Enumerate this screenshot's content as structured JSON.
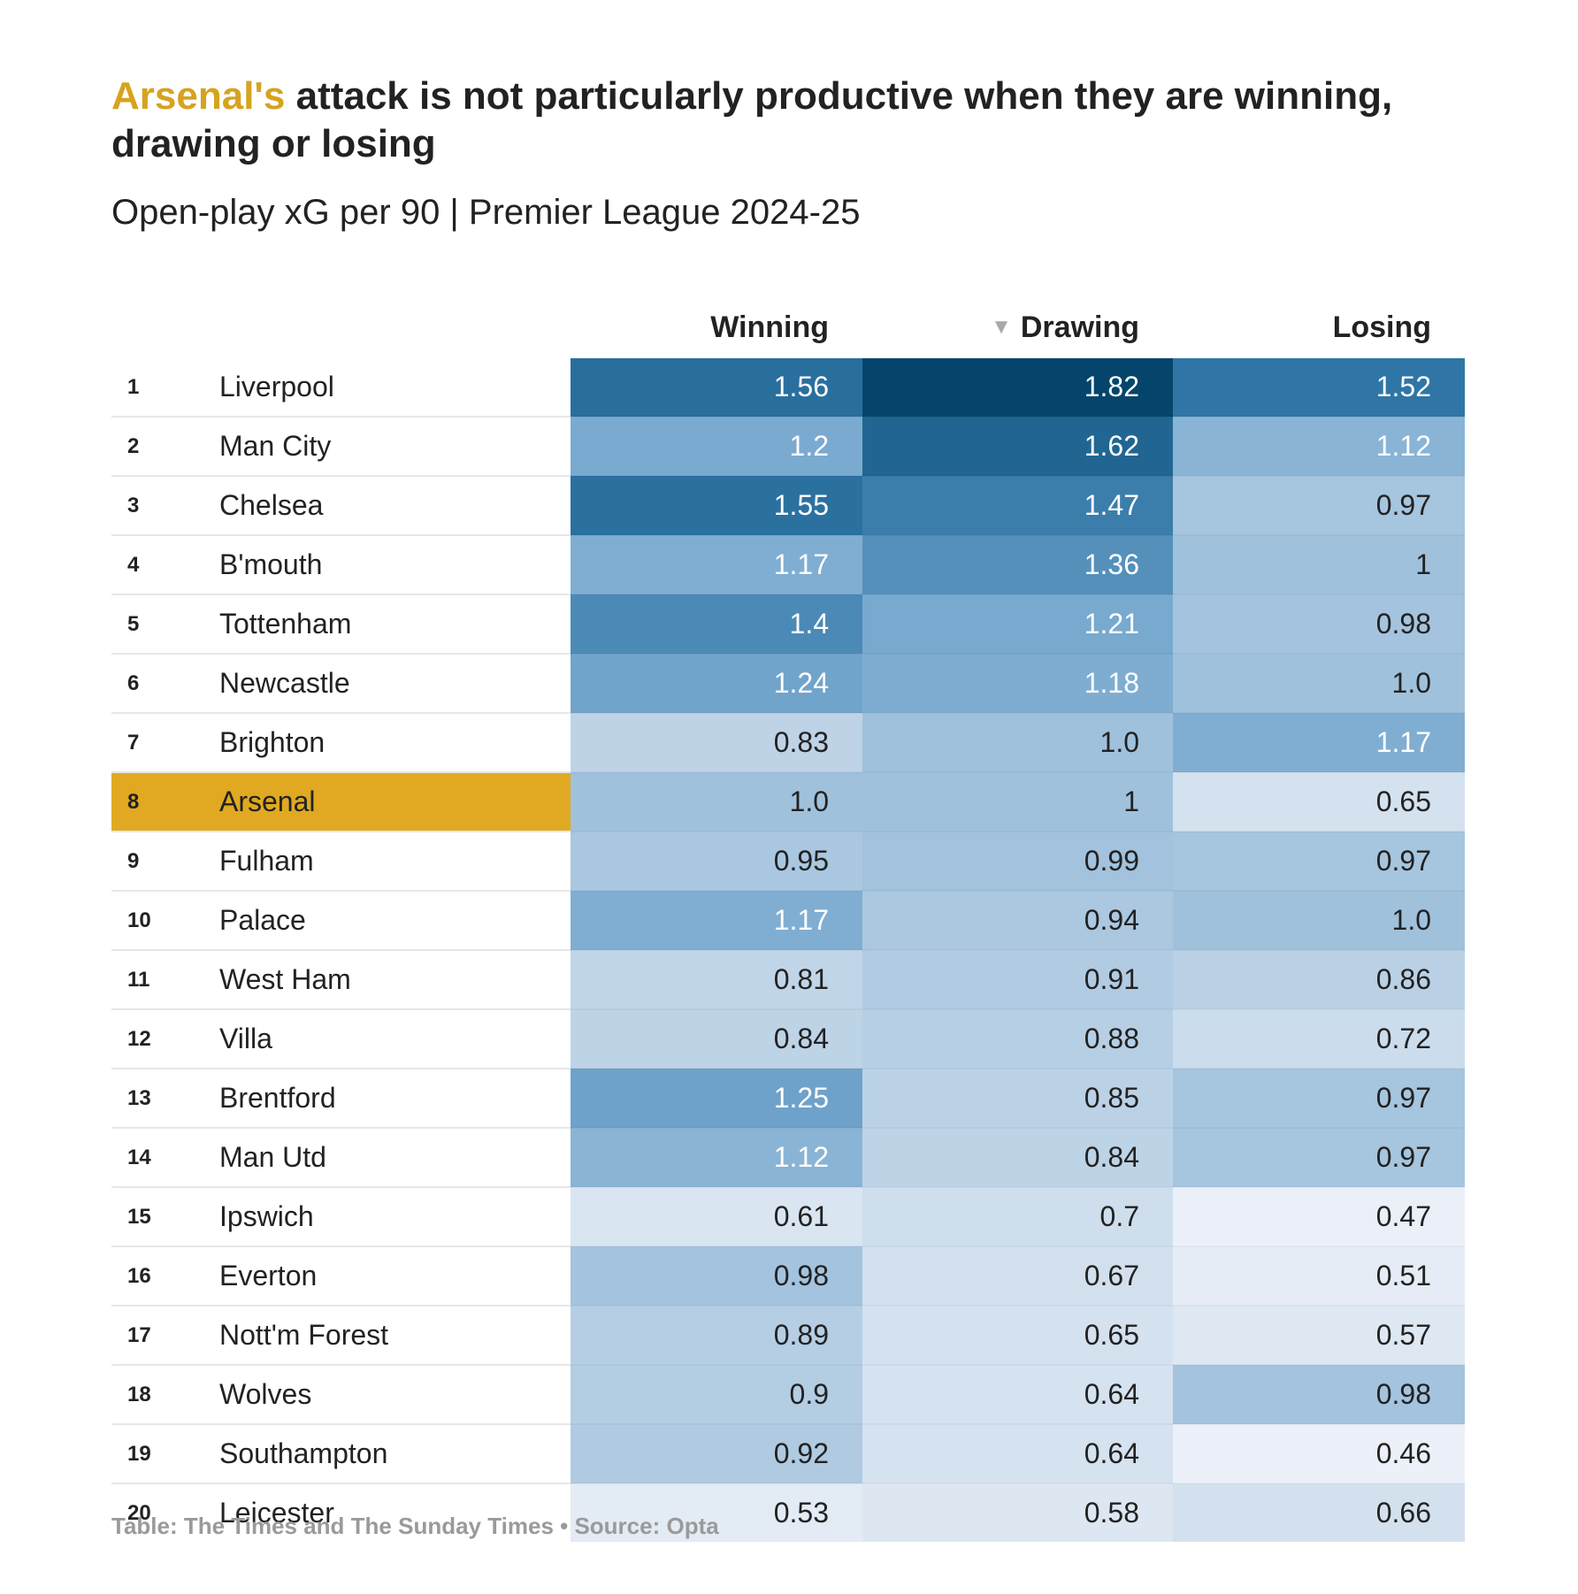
{
  "title": {
    "highlight": "Arsenal's",
    "rest": "attack is not particularly productive when they are winning, drawing or losing"
  },
  "subtitle": "Open-play xG per 90 | Premier League 2024-25",
  "footer": "Table: The Times and The Sunday Times • Source: Opta",
  "sort_icon": "triangle-down-icon",
  "highlight_team": "Arsenal",
  "colors": {
    "highlight": "#e0a921",
    "scale_low": "#edf1f8",
    "scale_high": "#05456b"
  },
  "chart_data": {
    "type": "table",
    "columns": [
      "",
      "",
      "Winning",
      "Drawing",
      "Losing"
    ],
    "sorted_by": "Drawing",
    "sort_order": "descending",
    "rows": [
      {
        "rank": "1",
        "team": "Liverpool",
        "values": [
          "1.56",
          "1.82",
          "1.52"
        ]
      },
      {
        "rank": "2",
        "team": "Man City",
        "values": [
          "1.2",
          "1.62",
          "1.12"
        ]
      },
      {
        "rank": "3",
        "team": "Chelsea",
        "values": [
          "1.55",
          "1.47",
          "0.97"
        ]
      },
      {
        "rank": "4",
        "team": "B'mouth",
        "values": [
          "1.17",
          "1.36",
          "1"
        ]
      },
      {
        "rank": "5",
        "team": "Tottenham",
        "values": [
          "1.4",
          "1.21",
          "0.98"
        ]
      },
      {
        "rank": "6",
        "team": "Newcastle",
        "values": [
          "1.24",
          "1.18",
          "1.0"
        ]
      },
      {
        "rank": "7",
        "team": "Brighton",
        "values": [
          "0.83",
          "1.0",
          "1.17"
        ]
      },
      {
        "rank": "8",
        "team": "Arsenal",
        "values": [
          "1.0",
          "1",
          "0.65"
        ]
      },
      {
        "rank": "9",
        "team": "Fulham",
        "values": [
          "0.95",
          "0.99",
          "0.97"
        ]
      },
      {
        "rank": "10",
        "team": "Palace",
        "values": [
          "1.17",
          "0.94",
          "1.0"
        ]
      },
      {
        "rank": "11",
        "team": "West Ham",
        "values": [
          "0.81",
          "0.91",
          "0.86"
        ]
      },
      {
        "rank": "12",
        "team": "Villa",
        "values": [
          "0.84",
          "0.88",
          "0.72"
        ]
      },
      {
        "rank": "13",
        "team": "Brentford",
        "values": [
          "1.25",
          "0.85",
          "0.97"
        ]
      },
      {
        "rank": "14",
        "team": "Man Utd",
        "values": [
          "1.12",
          "0.84",
          "0.97"
        ]
      },
      {
        "rank": "15",
        "team": "Ipswich",
        "values": [
          "0.61",
          "0.7",
          "0.47"
        ]
      },
      {
        "rank": "16",
        "team": "Everton",
        "values": [
          "0.98",
          "0.67",
          "0.51"
        ]
      },
      {
        "rank": "17",
        "team": "Nott'm Forest",
        "values": [
          "0.89",
          "0.65",
          "0.57"
        ]
      },
      {
        "rank": "18",
        "team": "Wolves",
        "values": [
          "0.9",
          "0.64",
          "0.98"
        ]
      },
      {
        "rank": "19",
        "team": "Southampton",
        "values": [
          "0.92",
          "0.64",
          "0.46"
        ]
      },
      {
        "rank": "20",
        "team": "Leicester",
        "values": [
          "0.53",
          "0.58",
          "0.66"
        ]
      }
    ]
  }
}
